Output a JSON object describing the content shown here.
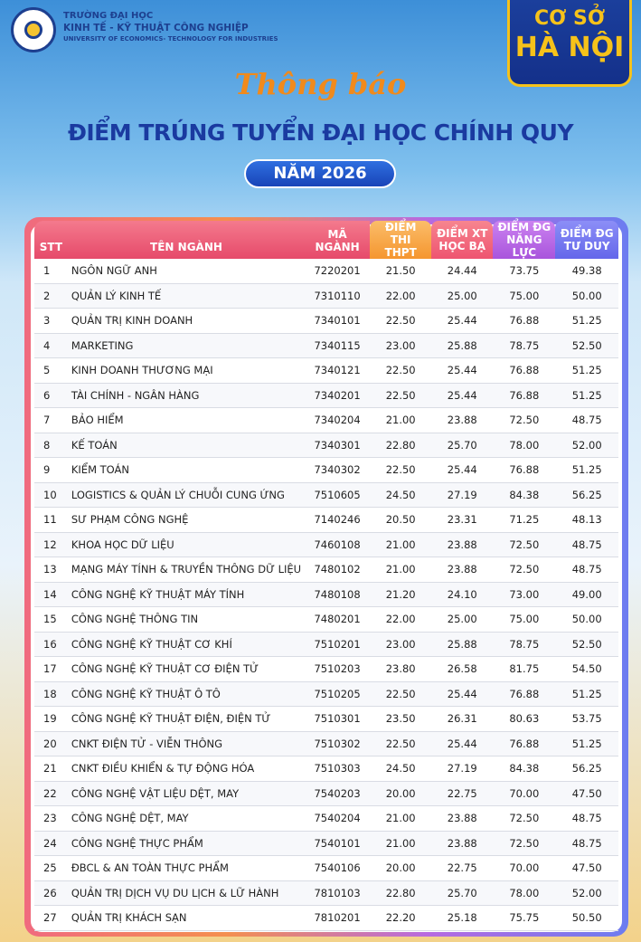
{
  "header": {
    "school": [
      "TRƯỜNG ĐẠI HỌC",
      "KINH TẾ - KỸ THUẬT CÔNG NGHIỆP",
      "UNIVERSITY OF ECONOMICS- TECHNOLOGY FOR INDUSTRIES"
    ],
    "campus": [
      "CƠ SỞ",
      "HÀ NỘI"
    ],
    "notice": "Thông báo",
    "title": "ĐIỂM TRÚNG TUYỂN ĐẠI HỌC CHÍNH QUY",
    "year": "NĂM 2026"
  },
  "table": {
    "columns": [
      "STT",
      "TÊN NGÀNH",
      "MÃ NGÀNH",
      "ĐIỂM THI THPT",
      "ĐIỂM XT HỌC BẠ",
      "ĐIỂM ĐG NĂNG LỰC",
      "ĐIỂM ĐG TƯ DUY"
    ],
    "rows": [
      [
        "1",
        "NGÔN NGỮ ANH",
        "7220201",
        "21.50",
        "24.44",
        "73.75",
        "49.38"
      ],
      [
        "2",
        "QUẢN LÝ KINH TẾ",
        "7310110",
        "22.00",
        "25.00",
        "75.00",
        "50.00"
      ],
      [
        "3",
        "QUẢN TRỊ KINH DOANH",
        "7340101",
        "22.50",
        "25.44",
        "76.88",
        "51.25"
      ],
      [
        "4",
        "MARKETING",
        "7340115",
        "23.00",
        "25.88",
        "78.75",
        "52.50"
      ],
      [
        "5",
        "KINH DOANH THƯƠNG MẠI",
        "7340121",
        "22.50",
        "25.44",
        "76.88",
        "51.25"
      ],
      [
        "6",
        "TÀI CHÍNH - NGÂN HÀNG",
        "7340201",
        "22.50",
        "25.44",
        "76.88",
        "51.25"
      ],
      [
        "7",
        "BẢO HIỂM",
        "7340204",
        "21.00",
        "23.88",
        "72.50",
        "48.75"
      ],
      [
        "8",
        "KẾ TOÁN",
        "7340301",
        "22.80",
        "25.70",
        "78.00",
        "52.00"
      ],
      [
        "9",
        "KIỂM TOÁN",
        "7340302",
        "22.50",
        "25.44",
        "76.88",
        "51.25"
      ],
      [
        "10",
        "LOGISTICS & QUẢN LÝ CHUỖI CUNG ỨNG",
        "7510605",
        "24.50",
        "27.19",
        "84.38",
        "56.25"
      ],
      [
        "11",
        "SƯ PHẠM CÔNG NGHỆ",
        "7140246",
        "20.50",
        "23.31",
        "71.25",
        "48.13"
      ],
      [
        "12",
        "KHOA HỌC DỮ LIỆU",
        "7460108",
        "21.00",
        "23.88",
        "72.50",
        "48.75"
      ],
      [
        "13",
        "MẠNG MÁY TÍNH & TRUYỀN THÔNG DỮ LIỆU",
        "7480102",
        "21.00",
        "23.88",
        "72.50",
        "48.75"
      ],
      [
        "14",
        "CÔNG NGHỆ KỸ THUẬT MÁY TÍNH",
        "7480108",
        "21.20",
        "24.10",
        "73.00",
        "49.00"
      ],
      [
        "15",
        "CÔNG NGHỆ THÔNG TIN",
        "7480201",
        "22.00",
        "25.00",
        "75.00",
        "50.00"
      ],
      [
        "16",
        "CÔNG NGHỆ KỸ THUẬT CƠ KHÍ",
        "7510201",
        "23.00",
        "25.88",
        "78.75",
        "52.50"
      ],
      [
        "17",
        "CÔNG NGHỆ KỸ THUẬT CƠ ĐIỆN TỬ",
        "7510203",
        "23.80",
        "26.58",
        "81.75",
        "54.50"
      ],
      [
        "18",
        "CÔNG NGHỆ KỸ THUẬT Ô TÔ",
        "7510205",
        "22.50",
        "25.44",
        "76.88",
        "51.25"
      ],
      [
        "19",
        "CÔNG NGHỆ KỸ THUẬT ĐIỆN, ĐIỆN TỬ",
        "7510301",
        "23.50",
        "26.31",
        "80.63",
        "53.75"
      ],
      [
        "20",
        "CNKT ĐIỆN TỬ - VIỄN THÔNG",
        "7510302",
        "22.50",
        "25.44",
        "76.88",
        "51.25"
      ],
      [
        "21",
        "CNKT ĐIỀU KHIỂN & TỰ ĐỘNG HÓA",
        "7510303",
        "24.50",
        "27.19",
        "84.38",
        "56.25"
      ],
      [
        "22",
        "CÔNG NGHỆ VẬT LIỆU DỆT, MAY",
        "7540203",
        "20.00",
        "22.75",
        "70.00",
        "47.50"
      ],
      [
        "23",
        "CÔNG NGHỆ DỆT, MAY",
        "7540204",
        "21.00",
        "23.88",
        "72.50",
        "48.75"
      ],
      [
        "24",
        "CÔNG NGHỆ THỰC PHẨM",
        "7540101",
        "21.00",
        "23.88",
        "72.50",
        "48.75"
      ],
      [
        "25",
        "ĐBCL & AN TOÀN THỰC PHẨM",
        "7540106",
        "20.00",
        "22.75",
        "70.00",
        "47.50"
      ],
      [
        "26",
        "QUẢN TRỊ DỊCH VỤ DU LỊCH & LỮ HÀNH",
        "7810103",
        "22.80",
        "25.70",
        "78.00",
        "52.00"
      ],
      [
        "27",
        "QUẢN TRỊ KHÁCH SẠN",
        "7810201",
        "22.20",
        "25.18",
        "75.75",
        "50.50"
      ]
    ]
  }
}
